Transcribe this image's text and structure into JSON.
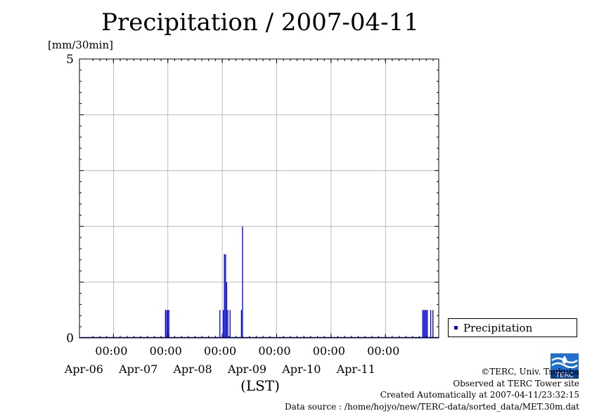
{
  "chart_data": {
    "type": "bar",
    "title": "Precipitation / 2007-04-11",
    "ylabel": "[mm/30min]",
    "xlabel": "(LST)",
    "ylim": [
      0,
      5
    ],
    "y_ticks": [
      "0",
      "5"
    ],
    "x_range": [
      "2007-04-05 09:00",
      "2007-04-11 23:30"
    ],
    "x_time_ticks": [
      {
        "time": "2007-04-06 00:00",
        "label": "00:00",
        "date_label": "Apr-06"
      },
      {
        "time": "2007-04-07 00:00",
        "label": "00:00",
        "date_label": "Apr-07"
      },
      {
        "time": "2007-04-08 00:00",
        "label": "00:00",
        "date_label": "Apr-08"
      },
      {
        "time": "2007-04-09 00:00",
        "label": "00:00",
        "date_label": "Apr-09"
      },
      {
        "time": "2007-04-10 00:00",
        "label": "00:00",
        "date_label": "Apr-10"
      },
      {
        "time": "2007-04-11 00:00",
        "label": "00:00",
        "date_label": "Apr-11"
      }
    ],
    "grid": true,
    "legend_position": "bottom-right",
    "series": [
      {
        "name": "Precipitation",
        "color": "#0000cc",
        "points": [
          {
            "t": "2007-04-06 23:00",
            "v": 0.5
          },
          {
            "t": "2007-04-06 23:30",
            "v": 0.5
          },
          {
            "t": "2007-04-07 00:00",
            "v": 0.5
          },
          {
            "t": "2007-04-07 00:30",
            "v": 0.5
          },
          {
            "t": "2007-04-07 23:00",
            "v": 0.5
          },
          {
            "t": "2007-04-08 00:30",
            "v": 0.5
          },
          {
            "t": "2007-04-08 01:00",
            "v": 1.5
          },
          {
            "t": "2007-04-08 01:30",
            "v": 1.5
          },
          {
            "t": "2007-04-08 02:00",
            "v": 1.0
          },
          {
            "t": "2007-04-08 02:30",
            "v": 0.5
          },
          {
            "t": "2007-04-08 03:30",
            "v": 0.5
          },
          {
            "t": "2007-04-08 08:30",
            "v": 0.5
          },
          {
            "t": "2007-04-08 09:00",
            "v": 2.0
          },
          {
            "t": "2007-04-11 16:30",
            "v": 0.5
          },
          {
            "t": "2007-04-11 17:00",
            "v": 0.5
          },
          {
            "t": "2007-04-11 17:30",
            "v": 0.5
          },
          {
            "t": "2007-04-11 18:00",
            "v": 0.5
          },
          {
            "t": "2007-04-11 18:30",
            "v": 0.5
          },
          {
            "t": "2007-04-11 20:00",
            "v": 0.5
          },
          {
            "t": "2007-04-11 21:00",
            "v": 0.5
          }
        ]
      }
    ]
  },
  "credits": {
    "copyright": "©TERC, Univ. Tsukuba",
    "observed": "Observed at TERC Tower site",
    "created": "Created Automatically at 2007-04-11/23:32:15",
    "source": "Data source : /home/hojyo/new/TERC-data/sorted_data/MET.30m.dat",
    "logo_text": "TERC"
  }
}
